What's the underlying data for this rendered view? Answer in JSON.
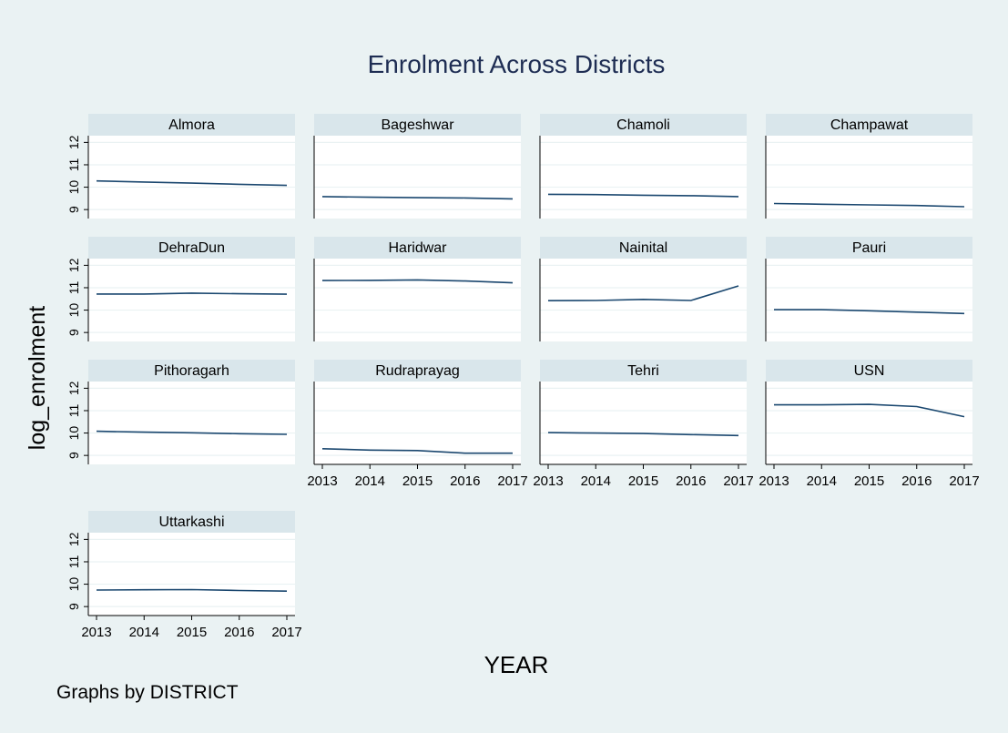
{
  "chart_data": {
    "type": "line",
    "title": "Enrolment Across Districts",
    "xlabel": "YEAR",
    "ylabel": "log_enrolment",
    "note": "Graphs by DISTRICT",
    "x": [
      2013,
      2014,
      2015,
      2016,
      2017
    ],
    "x_ticks": [
      "2013",
      "2014",
      "2015",
      "2016",
      "2017"
    ],
    "ylim": [
      8.6,
      12.3
    ],
    "y_ticks": [
      "9",
      "10",
      "11",
      "12"
    ],
    "panels": [
      {
        "name": "Almora",
        "values": [
          10.28,
          10.23,
          10.18,
          10.13,
          10.08
        ]
      },
      {
        "name": "Bageshwar",
        "values": [
          9.58,
          9.55,
          9.53,
          9.52,
          9.48
        ]
      },
      {
        "name": "Chamoli",
        "values": [
          9.68,
          9.67,
          9.64,
          9.62,
          9.58
        ]
      },
      {
        "name": "Champawat",
        "values": [
          9.27,
          9.24,
          9.21,
          9.18,
          9.13
        ]
      },
      {
        "name": "DehraDun",
        "values": [
          10.72,
          10.72,
          10.76,
          10.73,
          10.71
        ]
      },
      {
        "name": "Haridwar",
        "values": [
          11.32,
          11.33,
          11.35,
          11.3,
          11.22
        ]
      },
      {
        "name": "Nainital",
        "values": [
          10.42,
          10.43,
          10.48,
          10.43,
          11.08
        ]
      },
      {
        "name": "Pauri",
        "values": [
          10.02,
          10.02,
          9.97,
          9.91,
          9.85
        ]
      },
      {
        "name": "Pithoragarh",
        "values": [
          10.08,
          10.04,
          10.01,
          9.97,
          9.94
        ]
      },
      {
        "name": "Rudraprayag",
        "values": [
          9.3,
          9.24,
          9.22,
          9.1,
          9.1
        ]
      },
      {
        "name": "Tehri",
        "values": [
          10.02,
          10.0,
          9.98,
          9.93,
          9.89
        ]
      },
      {
        "name": "USN",
        "values": [
          11.26,
          11.26,
          11.28,
          11.18,
          10.73
        ]
      },
      {
        "name": "Uttarkashi",
        "values": [
          9.74,
          9.75,
          9.76,
          9.72,
          9.69
        ]
      }
    ]
  },
  "colors": {
    "background": "#eaf2f3",
    "strip": "#d9e6eb",
    "plot": "#ffffff",
    "grid": "#eaf2f3",
    "line": "#1a476f",
    "title": "#1e2d53",
    "text": "#000000"
  }
}
